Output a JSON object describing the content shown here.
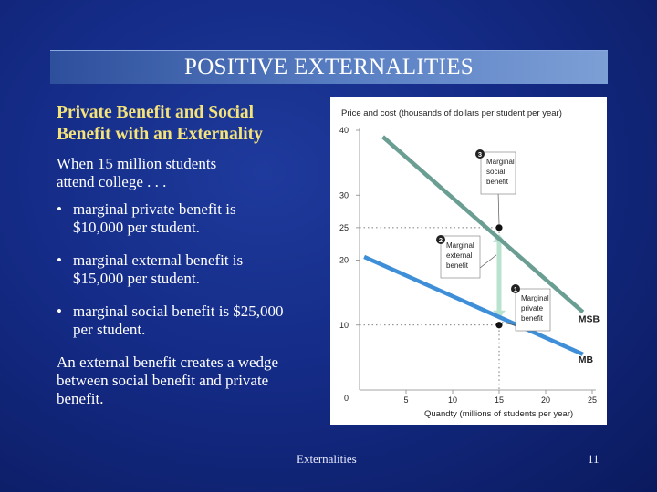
{
  "slide": {
    "title": "POSITIVE EXTERNALITIES",
    "subtitle_line1": "Private Benefit and Social",
    "subtitle_line2": "Benefit with an Externality",
    "intro_line1": "When 15 million students",
    "intro_line2": "attend college . . .",
    "bullet_symbol": "•",
    "bullets": [
      {
        "line1": "marginal private benefit is",
        "line2": "$10,000 per student."
      },
      {
        "line1": "marginal external benefit is",
        "line2": "$15,000 per student."
      },
      {
        "line1": "marginal social benefit is $25,000",
        "line2": "per student."
      }
    ],
    "conclusion_line1": "An external benefit creates a wedge",
    "conclusion_line2": "between social benefit and private",
    "conclusion_line3": "benefit.",
    "footer_text": "Externalities",
    "page_number": "11"
  },
  "chart_data": {
    "type": "line",
    "ylabel": "Price and cost (thousands of dollars per student per year)",
    "xlabel": "Quandty (millions of students per year)",
    "xlim": [
      0,
      25
    ],
    "ylim": [
      0,
      40
    ],
    "x_ticks": [
      0,
      5,
      10,
      15,
      20,
      25
    ],
    "y_ticks": [
      10,
      20,
      25,
      30,
      40
    ],
    "series": [
      {
        "name": "MSB",
        "color": "#6b9e92",
        "x": [
          2.5,
          24
        ],
        "y": [
          39,
          12
        ]
      },
      {
        "name": "MB",
        "color": "#3f8fd8",
        "x": [
          0.5,
          24
        ],
        "y": [
          20.5,
          5.5
        ]
      }
    ],
    "highlight_points": [
      {
        "x": 15,
        "y": 25
      },
      {
        "x": 15,
        "y": 10
      }
    ],
    "annotations": [
      {
        "number": "1",
        "line1": "Marginal",
        "line2": "private",
        "line3": "benefit"
      },
      {
        "number": "2",
        "line1": "Marginal",
        "line2": "external",
        "line3": "benefit"
      },
      {
        "number": "3",
        "line1": "Marginal",
        "line2": "social",
        "line3": "benefit"
      }
    ],
    "wedge_color": "#b9e2cf"
  }
}
